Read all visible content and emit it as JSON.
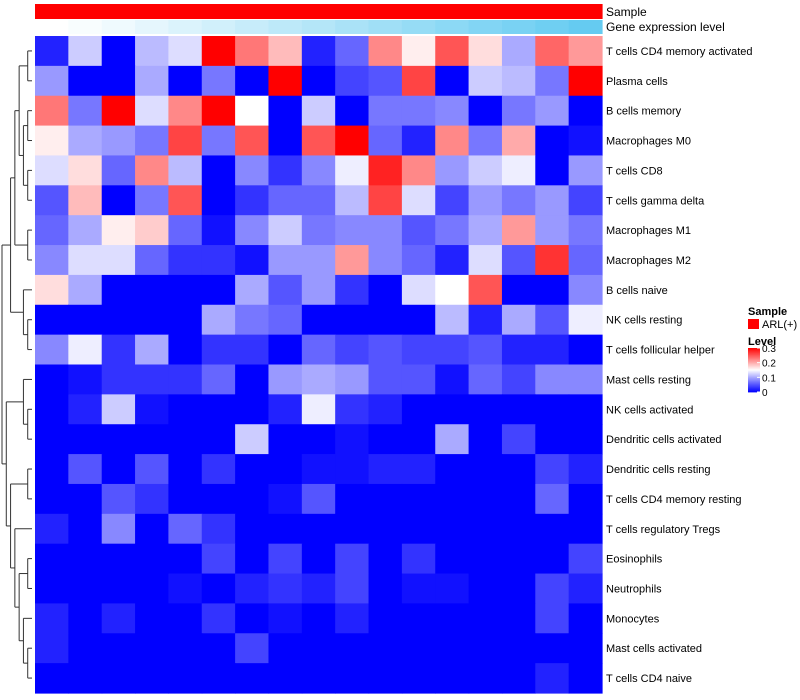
{
  "chart_data": {
    "type": "heatmap",
    "rows": [
      "T cells CD4 memory activated",
      "Plasma cells",
      "B cells memory",
      "Macrophages M0",
      "T cells CD8",
      "T cells gamma delta",
      "Macrophages M1",
      "Macrophages M2",
      "B cells naive",
      "NK cells resting",
      "T cells follicular helper",
      "Mast cells resting",
      "NK cells activated",
      "Dendritic cells activated",
      "Dendritic cells resting",
      "T cells CD4 memory resting",
      "T cells regulatory  Tregs",
      "Eosinophils",
      "Neutrophils",
      "Monocytes",
      "Mast cells activated",
      "T cells CD4 naive"
    ],
    "n_columns": 17,
    "values": [
      [
        0.02,
        0.12,
        0.0,
        0.11,
        0.13,
        0.3,
        0.23,
        0.19,
        0.02,
        0.06,
        0.22,
        0.16,
        0.25,
        0.17,
        0.1,
        0.24,
        0.21
      ],
      [
        0.09,
        0.0,
        0.0,
        0.1,
        0.0,
        0.07,
        0.0,
        0.3,
        0.0,
        0.04,
        0.05,
        0.26,
        0.0,
        0.12,
        0.11,
        0.07,
        0.3
      ],
      [
        0.23,
        0.07,
        0.3,
        0.13,
        0.22,
        0.3,
        0.15,
        0.0,
        0.12,
        0.0,
        0.07,
        0.07,
        0.08,
        0.0,
        0.07,
        0.09,
        0.0
      ],
      [
        0.16,
        0.1,
        0.09,
        0.07,
        0.26,
        0.07,
        0.25,
        0.0,
        0.25,
        0.3,
        0.06,
        0.02,
        0.22,
        0.07,
        0.2,
        0.0,
        0.01
      ],
      [
        0.13,
        0.17,
        0.06,
        0.22,
        0.11,
        0.0,
        0.08,
        0.03,
        0.08,
        0.14,
        0.28,
        0.22,
        0.09,
        0.12,
        0.14,
        0.0,
        0.09
      ],
      [
        0.05,
        0.19,
        0.0,
        0.07,
        0.25,
        0.0,
        0.03,
        0.06,
        0.06,
        0.11,
        0.26,
        0.13,
        0.04,
        0.09,
        0.07,
        0.09,
        0.04
      ],
      [
        0.06,
        0.1,
        0.16,
        0.18,
        0.06,
        0.01,
        0.08,
        0.12,
        0.07,
        0.08,
        0.08,
        0.05,
        0.07,
        0.1,
        0.21,
        0.09,
        0.07
      ],
      [
        0.08,
        0.13,
        0.13,
        0.06,
        0.03,
        0.03,
        0.01,
        0.09,
        0.09,
        0.21,
        0.08,
        0.06,
        0.02,
        0.13,
        0.05,
        0.27,
        0.06
      ],
      [
        0.17,
        0.1,
        0.0,
        0.0,
        0.0,
        0.0,
        0.1,
        0.05,
        0.09,
        0.03,
        0.0,
        0.13,
        0.15,
        0.25,
        0.0,
        0.0,
        0.08
      ],
      [
        0.0,
        0.0,
        0.0,
        0.0,
        0.0,
        0.1,
        0.07,
        0.06,
        0.0,
        0.0,
        0.0,
        0.0,
        0.11,
        0.02,
        0.1,
        0.05,
        0.14
      ],
      [
        0.08,
        0.14,
        0.03,
        0.1,
        0.0,
        0.03,
        0.03,
        0.0,
        0.06,
        0.04,
        0.05,
        0.04,
        0.04,
        0.05,
        0.02,
        0.02,
        0.0
      ],
      [
        0.0,
        0.01,
        0.03,
        0.03,
        0.03,
        0.06,
        0.0,
        0.09,
        0.1,
        0.09,
        0.05,
        0.05,
        0.01,
        0.06,
        0.04,
        0.08,
        0.08
      ],
      [
        0.0,
        0.02,
        0.12,
        0.01,
        0.0,
        0.0,
        0.0,
        0.02,
        0.14,
        0.03,
        0.02,
        0.0,
        0.0,
        0.0,
        0.0,
        0.0,
        0.0
      ],
      [
        0.0,
        0.0,
        0.0,
        0.0,
        0.0,
        0.0,
        0.12,
        0.0,
        0.0,
        0.01,
        0.0,
        0.0,
        0.1,
        0.0,
        0.04,
        0.0,
        0.0
      ],
      [
        0.0,
        0.05,
        0.0,
        0.05,
        0.0,
        0.03,
        0.0,
        0.0,
        0.01,
        0.01,
        0.02,
        0.02,
        0.0,
        0.0,
        0.0,
        0.04,
        0.02
      ],
      [
        0.0,
        0.0,
        0.05,
        0.03,
        0.0,
        0.0,
        0.0,
        0.01,
        0.05,
        0.0,
        0.0,
        0.0,
        0.0,
        0.0,
        0.0,
        0.06,
        0.0
      ],
      [
        0.02,
        0.0,
        0.08,
        0.0,
        0.06,
        0.03,
        0.0,
        0.0,
        0.0,
        0.0,
        0.0,
        0.0,
        0.0,
        0.0,
        0.0,
        0.0,
        0.0
      ],
      [
        0.0,
        0.0,
        0.0,
        0.0,
        0.0,
        0.04,
        0.0,
        0.04,
        0.0,
        0.04,
        0.0,
        0.03,
        0.0,
        0.0,
        0.0,
        0.0,
        0.04
      ],
      [
        0.0,
        0.0,
        0.0,
        0.0,
        0.01,
        0.0,
        0.02,
        0.03,
        0.02,
        0.04,
        0.0,
        0.01,
        0.01,
        0.0,
        0.0,
        0.04,
        0.02
      ],
      [
        0.02,
        0.0,
        0.02,
        0.0,
        0.0,
        0.03,
        0.0,
        0.01,
        0.0,
        0.02,
        0.0,
        0.0,
        0.0,
        0.0,
        0.0,
        0.04,
        0.0
      ],
      [
        0.02,
        0.0,
        0.0,
        0.0,
        0.0,
        0.0,
        0.04,
        0.0,
        0.0,
        0.0,
        0.0,
        0.0,
        0.0,
        0.0,
        0.0,
        0.0,
        0.0
      ],
      [
        0.0,
        0.0,
        0.0,
        0.0,
        0.0,
        0.0,
        0.0,
        0.0,
        0.0,
        0.0,
        0.0,
        0.0,
        0.0,
        0.0,
        0.0,
        0.02,
        0.0
      ]
    ],
    "gene_expression_level": [
      0.0,
      0.04,
      0.1,
      0.16,
      0.22,
      0.28,
      0.34,
      0.4,
      0.46,
      0.52,
      0.58,
      0.64,
      0.7,
      0.76,
      0.82,
      0.88,
      0.94
    ],
    "annotation_labels": {
      "sample": "Sample",
      "gene_expression": "Gene expression level"
    },
    "sample_group": "ARL(+)",
    "legend": {
      "sample_title": "Sample",
      "sample_entry": "ARL(+)",
      "level_title": "Level",
      "ticks": [
        0.3,
        0.2,
        0.1,
        0
      ],
      "tick_labels": [
        "0.3",
        "0.2",
        "0.1",
        "0"
      ],
      "position": "right"
    },
    "color_range": [
      0,
      0.3
    ],
    "colors": {
      "low": "#0000ff",
      "mid": "#ffffff",
      "high": "#ff0000",
      "sample_bar": "#ff0000",
      "expr_low": "#ffffff",
      "expr_high": "#5bc8f0"
    }
  }
}
